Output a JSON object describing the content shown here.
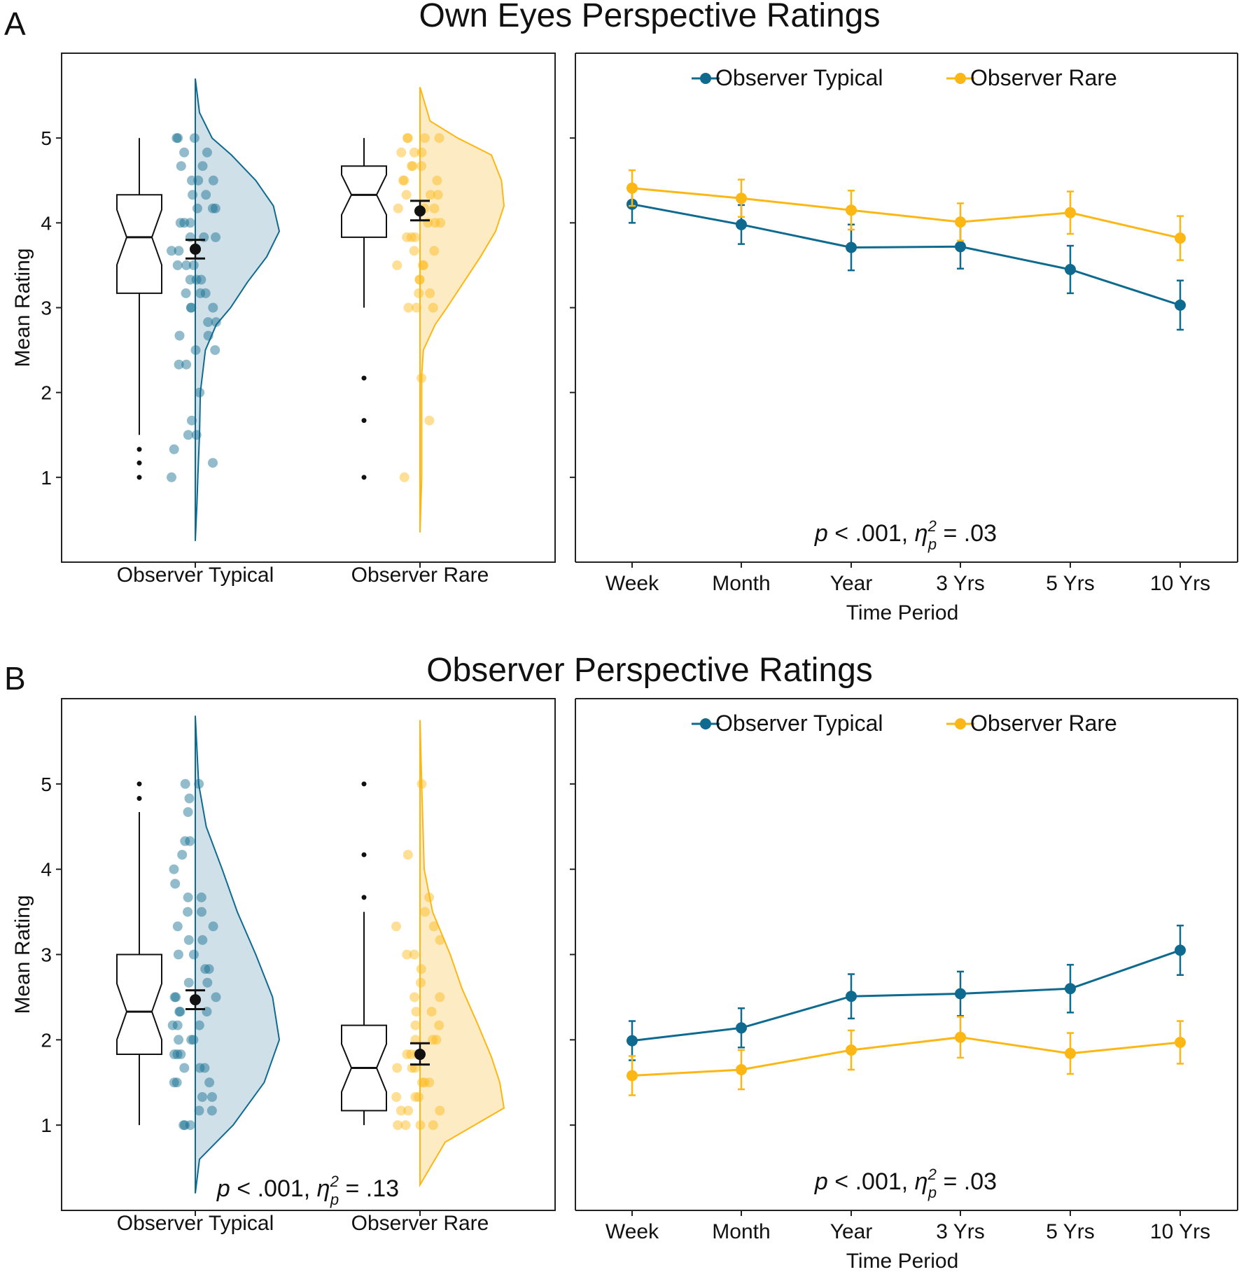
{
  "colors": {
    "typical": "#0e6b8f",
    "rare": "#fdb714",
    "typical_fill": "#c8dbe4",
    "rare_fill": "#fde8b8"
  },
  "chart_data": [
    {
      "panel_letter": "A",
      "title": "Own Eyes Perspective Ratings",
      "raincloud": {
        "type": "raincloud",
        "ylabel": "Mean Rating",
        "ylim": [
          0,
          6
        ],
        "yticks": [
          "1",
          "2",
          "3",
          "4",
          "5"
        ],
        "annotation": null,
        "groups": [
          {
            "name": "Observer Typical",
            "box": {
              "min": 1.5,
              "q1": 3.17,
              "median": 3.83,
              "q3": 4.33,
              "max": 5.0
            },
            "outliers": [
              1.0,
              1.17,
              1.33
            ],
            "mean": 3.69,
            "ci": [
              3.58,
              3.8
            ],
            "density": [
              [
                0.25,
                0.0
              ],
              [
                0.7,
                0.02
              ],
              [
                1.0,
                0.03
              ],
              [
                1.5,
                0.05
              ],
              [
                2.0,
                0.06
              ],
              [
                2.5,
                0.12
              ],
              [
                2.8,
                0.25
              ],
              [
                3.0,
                0.42
              ],
              [
                3.3,
                0.62
              ],
              [
                3.6,
                0.85
              ],
              [
                3.9,
                1.0
              ],
              [
                4.2,
                0.93
              ],
              [
                4.5,
                0.72
              ],
              [
                4.8,
                0.43
              ],
              [
                5.0,
                0.2
              ],
              [
                5.3,
                0.05
              ],
              [
                5.7,
                0.0
              ]
            ],
            "points": [
              1.0,
              1.17,
              1.33,
              1.5,
              1.5,
              1.67,
              2.0,
              2.33,
              2.33,
              2.5,
              2.5,
              2.67,
              2.67,
              2.83,
              2.83,
              3.0,
              3.0,
              3.0,
              3.17,
              3.17,
              3.17,
              3.33,
              3.33,
              3.33,
              3.5,
              3.5,
              3.5,
              3.67,
              3.67,
              3.83,
              3.83,
              3.83,
              4.0,
              4.0,
              4.0,
              4.17,
              4.17,
              4.17,
              4.33,
              4.33,
              4.5,
              4.5,
              4.5,
              4.67,
              4.67,
              4.83,
              4.83,
              5.0,
              5.0,
              5.0
            ]
          },
          {
            "name": "Observer Rare",
            "box": {
              "min": 3.0,
              "q1": 3.83,
              "median": 4.33,
              "q3": 4.67,
              "max": 5.0
            },
            "outliers": [
              1.0,
              1.67,
              2.17
            ],
            "mean": 4.14,
            "ci": [
              4.03,
              4.26
            ],
            "density": [
              [
                0.35,
                0.0
              ],
              [
                1.0,
                0.02
              ],
              [
                1.7,
                0.02
              ],
              [
                2.2,
                0.02
              ],
              [
                2.5,
                0.04
              ],
              [
                2.8,
                0.18
              ],
              [
                3.0,
                0.32
              ],
              [
                3.3,
                0.52
              ],
              [
                3.6,
                0.72
              ],
              [
                3.9,
                0.9
              ],
              [
                4.2,
                1.0
              ],
              [
                4.5,
                0.97
              ],
              [
                4.8,
                0.85
              ],
              [
                5.0,
                0.45
              ],
              [
                5.2,
                0.12
              ],
              [
                5.6,
                0.0
              ]
            ],
            "points": [
              1.0,
              1.67,
              2.17,
              3.0,
              3.0,
              3.0,
              3.17,
              3.17,
              3.33,
              3.33,
              3.5,
              3.5,
              3.5,
              3.67,
              3.67,
              3.83,
              3.83,
              3.83,
              4.0,
              4.0,
              4.0,
              4.17,
              4.17,
              4.17,
              4.33,
              4.33,
              4.33,
              4.5,
              4.5,
              4.5,
              4.67,
              4.67,
              4.67,
              4.83,
              4.83,
              4.83,
              5.0,
              5.0,
              5.0,
              5.0
            ]
          }
        ]
      },
      "line": {
        "type": "line",
        "xlabel": "Time Period",
        "categories": [
          "Week",
          "Month",
          "Year",
          "3 Yrs",
          "5 Yrs",
          "10 Yrs"
        ],
        "ylim": [
          0,
          6
        ],
        "annotation": {
          "p": "p",
          "rest": " < .001, ",
          "eta": "η",
          "sup": "2",
          "sub": "p",
          "val": " = .03"
        },
        "series": [
          {
            "name": "Observer Typical",
            "values": [
              4.22,
              3.98,
              3.71,
              3.72,
              3.45,
              3.03
            ],
            "err": [
              0.22,
              0.23,
              0.27,
              0.26,
              0.28,
              0.29
            ]
          },
          {
            "name": "Observer Rare",
            "values": [
              4.41,
              4.29,
              4.15,
              4.01,
              4.12,
              3.82
            ],
            "err": [
              0.21,
              0.22,
              0.23,
              0.22,
              0.25,
              0.26
            ]
          }
        ]
      }
    },
    {
      "panel_letter": "B",
      "title": "Observer Perspective Ratings",
      "raincloud": {
        "type": "raincloud",
        "ylabel": "Mean Rating",
        "ylim": [
          0,
          6
        ],
        "yticks": [
          "1",
          "2",
          "3",
          "4",
          "5"
        ],
        "annotation": {
          "p": "p",
          "rest": " < .001, ",
          "eta": "η",
          "sup": "2",
          "sub": "p",
          "val": " = .13"
        },
        "groups": [
          {
            "name": "Observer Typical",
            "box": {
              "min": 1.0,
              "q1": 1.83,
              "median": 2.33,
              "q3": 3.0,
              "max": 4.67
            },
            "outliers": [
              4.83,
              5.0
            ],
            "mean": 2.47,
            "ci": [
              2.36,
              2.58
            ],
            "density": [
              [
                0.2,
                0.0
              ],
              [
                0.6,
                0.05
              ],
              [
                1.0,
                0.45
              ],
              [
                1.5,
                0.82
              ],
              [
                2.0,
                1.0
              ],
              [
                2.5,
                0.92
              ],
              [
                3.0,
                0.72
              ],
              [
                3.5,
                0.5
              ],
              [
                4.0,
                0.32
              ],
              [
                4.5,
                0.13
              ],
              [
                5.0,
                0.04
              ],
              [
                5.8,
                0.0
              ]
            ],
            "points": [
              1.0,
              1.0,
              1.0,
              1.17,
              1.17,
              1.33,
              1.33,
              1.5,
              1.5,
              1.5,
              1.67,
              1.67,
              1.67,
              1.83,
              1.83,
              1.83,
              2.0,
              2.0,
              2.0,
              2.17,
              2.17,
              2.17,
              2.33,
              2.33,
              2.33,
              2.5,
              2.5,
              2.5,
              2.67,
              2.67,
              2.83,
              2.83,
              3.0,
              3.0,
              3.17,
              3.17,
              3.33,
              3.33,
              3.5,
              3.5,
              3.67,
              3.67,
              3.83,
              4.0,
              4.17,
              4.33,
              4.33,
              4.67,
              4.83,
              5.0,
              5.0
            ]
          },
          {
            "name": "Observer Rare",
            "box": {
              "min": 1.0,
              "q1": 1.17,
              "median": 1.67,
              "q3": 2.17,
              "max": 3.5
            },
            "outliers": [
              3.67,
              4.17,
              5.0
            ],
            "mean": 1.83,
            "ci": [
              1.71,
              1.96
            ],
            "density": [
              [
                0.3,
                0.0
              ],
              [
                0.8,
                0.3
              ],
              [
                1.2,
                1.0
              ],
              [
                1.5,
                0.95
              ],
              [
                1.8,
                0.85
              ],
              [
                2.2,
                0.68
              ],
              [
                2.6,
                0.5
              ],
              [
                3.0,
                0.36
              ],
              [
                3.5,
                0.15
              ],
              [
                4.0,
                0.05
              ],
              [
                5.0,
                0.02
              ],
              [
                5.75,
                0.0
              ]
            ],
            "points": [
              1.0,
              1.0,
              1.0,
              1.0,
              1.17,
              1.17,
              1.17,
              1.33,
              1.33,
              1.33,
              1.5,
              1.5,
              1.5,
              1.67,
              1.67,
              1.67,
              1.83,
              1.83,
              1.83,
              2.0,
              2.0,
              2.0,
              2.17,
              2.17,
              2.33,
              2.33,
              2.5,
              2.5,
              2.67,
              2.83,
              3.0,
              3.0,
              3.17,
              3.33,
              3.33,
              3.5,
              3.67,
              4.17,
              5.0
            ]
          }
        ]
      },
      "line": {
        "type": "line",
        "xlabel": "Time Period",
        "categories": [
          "Week",
          "Month",
          "Year",
          "3 Yrs",
          "5 Yrs",
          "10 Yrs"
        ],
        "ylim": [
          0,
          6
        ],
        "annotation": {
          "p": "p",
          "rest": " < .001, ",
          "eta": "η",
          "sup": "2",
          "sub": "p",
          "val": " = .03"
        },
        "series": [
          {
            "name": "Observer Typical",
            "values": [
              1.99,
              2.14,
              2.51,
              2.54,
              2.6,
              3.05
            ],
            "err": [
              0.23,
              0.23,
              0.26,
              0.26,
              0.28,
              0.29
            ]
          },
          {
            "name": "Observer Rare",
            "values": [
              1.58,
              1.65,
              1.88,
              2.03,
              1.84,
              1.97
            ],
            "err": [
              0.23,
              0.23,
              0.23,
              0.24,
              0.24,
              0.25
            ]
          }
        ]
      }
    }
  ]
}
